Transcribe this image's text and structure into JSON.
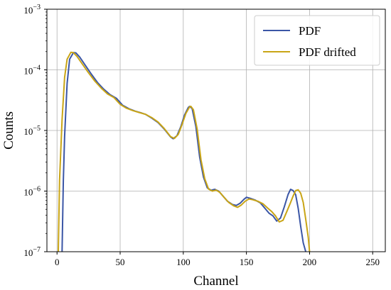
{
  "chart_data": {
    "type": "line",
    "xlabel": "Channel",
    "ylabel": "Counts",
    "xlim": [
      -8,
      260
    ],
    "ylim": [
      1e-07,
      0.001
    ],
    "yscale": "log",
    "grid": true,
    "legend_placement": "top-right",
    "x_ticks": [
      {
        "value": 0,
        "label": "0"
      },
      {
        "value": 50,
        "label": "50"
      },
      {
        "value": 100,
        "label": "100"
      },
      {
        "value": 150,
        "label": "150"
      },
      {
        "value": 200,
        "label": "200"
      },
      {
        "value": 250,
        "label": "250"
      }
    ],
    "y_ticks": [
      {
        "value": 1e-07,
        "base": "10",
        "exp": "−7"
      },
      {
        "value": 1e-06,
        "base": "10",
        "exp": "−6"
      },
      {
        "value": 1e-05,
        "base": "10",
        "exp": "−5"
      },
      {
        "value": 0.0001,
        "base": "10",
        "exp": "−4"
      },
      {
        "value": 0.001,
        "base": "10",
        "exp": "−3"
      }
    ],
    "series": [
      {
        "name": "PDF",
        "color": "#3b56a6",
        "points": [
          [
            4,
            1e-07
          ],
          [
            5,
            1.5e-06
          ],
          [
            6,
            8e-06
          ],
          [
            8,
            6e-05
          ],
          [
            10,
            0.00015
          ],
          [
            13,
            0.000193
          ],
          [
            15,
            0.00019
          ],
          [
            18,
            0.000162
          ],
          [
            22,
            0.000122
          ],
          [
            27,
            8.6e-05
          ],
          [
            32,
            6.2e-05
          ],
          [
            37,
            4.8e-05
          ],
          [
            42,
            3.9e-05
          ],
          [
            47,
            3.4e-05
          ],
          [
            52,
            2.6e-05
          ],
          [
            57,
            2.28e-05
          ],
          [
            62,
            2.08e-05
          ],
          [
            67,
            1.94e-05
          ],
          [
            70,
            1.85e-05
          ],
          [
            75,
            1.6e-05
          ],
          [
            80,
            1.35e-05
          ],
          [
            85,
            1.05e-05
          ],
          [
            90,
            7.8e-06
          ],
          [
            92,
            7.3e-06
          ],
          [
            95,
            8.2e-06
          ],
          [
            98,
            1.15e-05
          ],
          [
            101,
            1.8e-05
          ],
          [
            104,
            2.4e-05
          ],
          [
            105,
            2.5e-05
          ],
          [
            107,
            2.3e-05
          ],
          [
            110,
            1.15e-05
          ],
          [
            113,
            3.6e-06
          ],
          [
            116,
            1.7e-06
          ],
          [
            119,
            1.13e-06
          ],
          [
            122,
            1.03e-06
          ],
          [
            125,
            1.07e-06
          ],
          [
            128,
            1e-06
          ],
          [
            131,
            8.5e-07
          ],
          [
            135,
            6.8e-07
          ],
          [
            139,
            6e-07
          ],
          [
            142,
            5.8e-07
          ],
          [
            145,
            6.3e-07
          ],
          [
            148,
            7.3e-07
          ],
          [
            150,
            7.9e-07
          ],
          [
            153,
            7.6e-07
          ],
          [
            157,
            7.1e-07
          ],
          [
            161,
            6.4e-07
          ],
          [
            165,
            5.1e-07
          ],
          [
            168,
            4.3e-07
          ],
          [
            171,
            3.9e-07
          ],
          [
            174,
            3.2e-07
          ],
          [
            177,
            3.6e-07
          ],
          [
            180,
            5.5e-07
          ],
          [
            183,
            8.8e-07
          ],
          [
            185,
            1.07e-06
          ],
          [
            187,
            1.02e-06
          ],
          [
            189,
            8.7e-07
          ],
          [
            191,
            5.2e-07
          ],
          [
            193,
            2.6e-07
          ],
          [
            195,
            1.4e-07
          ],
          [
            197,
            1e-07
          ]
        ]
      },
      {
        "name": "PDF drifted",
        "color": "#c9a516",
        "points": [
          [
            1,
            1e-07
          ],
          [
            2,
            1.5e-06
          ],
          [
            4,
            1.5e-05
          ],
          [
            6,
            7.5e-05
          ],
          [
            8,
            0.00015
          ],
          [
            11,
            0.000195
          ],
          [
            13,
            0.000192
          ],
          [
            16,
            0.000165
          ],
          [
            20,
            0.000125
          ],
          [
            25,
            8.9e-05
          ],
          [
            30,
            6.5e-05
          ],
          [
            35,
            5e-05
          ],
          [
            40,
            4e-05
          ],
          [
            45,
            3.5e-05
          ],
          [
            50,
            2.7e-05
          ],
          [
            55,
            2.33e-05
          ],
          [
            60,
            2.13e-05
          ],
          [
            65,
            1.98e-05
          ],
          [
            70,
            1.85e-05
          ],
          [
            75,
            1.63e-05
          ],
          [
            80,
            1.38e-05
          ],
          [
            85,
            1.07e-05
          ],
          [
            90,
            7.9e-06
          ],
          [
            93,
            7.4e-06
          ],
          [
            96,
            8.6e-06
          ],
          [
            99,
            1.25e-05
          ],
          [
            102,
            1.9e-05
          ],
          [
            105,
            2.45e-05
          ],
          [
            106,
            2.5e-05
          ],
          [
            108,
            2.2e-05
          ],
          [
            111,
            1.05e-05
          ],
          [
            114,
            3.3e-06
          ],
          [
            117,
            1.6e-06
          ],
          [
            120,
            1.08e-06
          ],
          [
            123,
            1e-06
          ],
          [
            126,
            1.04e-06
          ],
          [
            129,
            9.5e-07
          ],
          [
            132,
            8e-07
          ],
          [
            136,
            6.5e-07
          ],
          [
            140,
            5.7e-07
          ],
          [
            143,
            5.4e-07
          ],
          [
            146,
            5.9e-07
          ],
          [
            149,
            6.8e-07
          ],
          [
            152,
            7.4e-07
          ],
          [
            155,
            7.2e-07
          ],
          [
            159,
            6.8e-07
          ],
          [
            163,
            6.2e-07
          ],
          [
            167,
            5.2e-07
          ],
          [
            170,
            4.6e-07
          ],
          [
            173,
            3.9e-07
          ],
          [
            176,
            3.1e-07
          ],
          [
            179,
            3.3e-07
          ],
          [
            182,
            4.6e-07
          ],
          [
            185,
            6.5e-07
          ],
          [
            187,
            8.3e-07
          ],
          [
            189,
            1.02e-06
          ],
          [
            191,
            1.05e-06
          ],
          [
            193,
            9.2e-07
          ],
          [
            195,
            6.5e-07
          ],
          [
            197,
            3.4e-07
          ],
          [
            199,
            1.7e-07
          ],
          [
            200,
            1e-07
          ]
        ]
      }
    ]
  }
}
